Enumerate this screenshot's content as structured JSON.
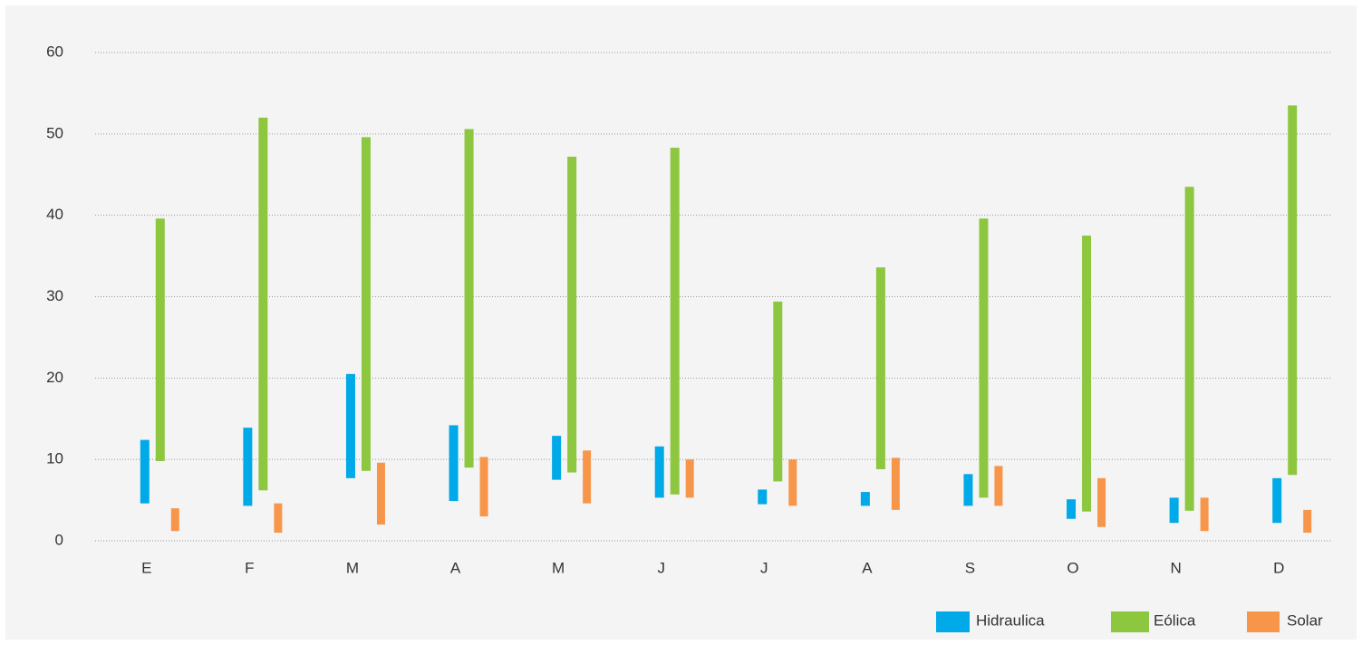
{
  "chart_data": {
    "type": "floating-bar",
    "categories": [
      "E",
      "F",
      "M",
      "A",
      "M",
      "J",
      "J",
      "A",
      "S",
      "O",
      "N",
      "D"
    ],
    "ylim": [
      0,
      60
    ],
    "yticks": [
      0,
      10,
      20,
      30,
      40,
      50,
      60
    ],
    "grid": true,
    "legend": "bottom-right",
    "series": [
      {
        "name": "Hidraulica",
        "color": "#00a9e8",
        "low": [
          4.6,
          4.3,
          7.7,
          4.9,
          7.5,
          5.3,
          4.5,
          4.3,
          4.3,
          2.7,
          2.2,
          2.2
        ],
        "high": [
          12.4,
          13.9,
          20.5,
          14.2,
          12.9,
          11.6,
          6.3,
          6.0,
          8.2,
          5.1,
          5.3,
          7.7
        ]
      },
      {
        "name": "Eólica",
        "color": "#8dc63f",
        "low": [
          9.8,
          6.2,
          8.6,
          9.0,
          8.4,
          5.7,
          7.3,
          8.8,
          5.3,
          3.6,
          3.7,
          8.1
        ],
        "high": [
          39.6,
          52.0,
          49.6,
          50.6,
          47.2,
          48.3,
          29.4,
          33.6,
          39.6,
          37.5,
          43.5,
          53.5
        ]
      },
      {
        "name": "Solar",
        "color": "#f7964a",
        "low": [
          1.2,
          1.0,
          2.0,
          3.0,
          4.6,
          5.3,
          4.3,
          3.8,
          4.3,
          1.7,
          1.2,
          1.0
        ],
        "high": [
          4.0,
          4.6,
          9.6,
          10.3,
          11.1,
          10.0,
          10.0,
          10.2,
          9.2,
          7.7,
          5.3,
          3.8
        ]
      }
    ]
  }
}
